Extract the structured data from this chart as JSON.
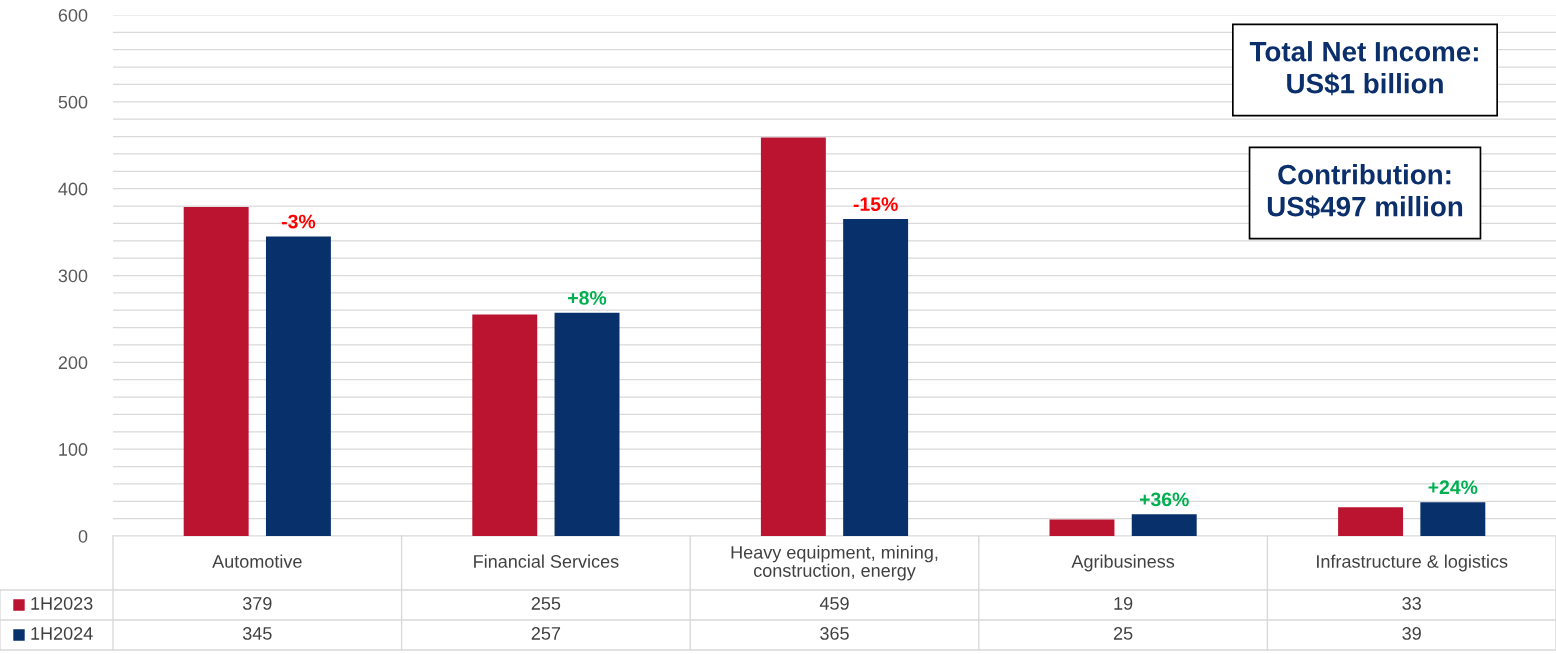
{
  "chart_data": {
    "type": "bar",
    "categories": [
      "Automotive",
      "Financial Services",
      "Heavy equipment, mining,\nconstruction, energy",
      "Agribusiness",
      "Infrastructure & logistics"
    ],
    "series": [
      {
        "name": "1H2023",
        "color": "#ba1431",
        "values": [
          379,
          255,
          459,
          19,
          33
        ]
      },
      {
        "name": "1H2024",
        "color": "#08306b",
        "values": [
          345,
          257,
          365,
          25,
          39
        ]
      }
    ],
    "ylim": [
      0,
      600
    ],
    "yticks": [
      0,
      {
        "value": 20,
        "label": null
      },
      {
        "value": 40,
        "label": null
      },
      {
        "value": 60,
        "label": null
      },
      {
        "value": 80,
        "label": null
      },
      100,
      {
        "value": 120,
        "label": null
      },
      {
        "value": 140,
        "label": null
      },
      {
        "value": 160,
        "label": null
      },
      {
        "value": 180,
        "label": null
      },
      200,
      {
        "value": 220,
        "label": null
      },
      {
        "value": 240,
        "label": null
      },
      {
        "value": 260,
        "label": null
      },
      {
        "value": 280,
        "label": null
      },
      300,
      {
        "value": 320,
        "label": null
      },
      {
        "value": 340,
        "label": null
      },
      {
        "value": 360,
        "label": null
      },
      {
        "value": 380,
        "label": null
      },
      400,
      {
        "value": 420,
        "label": null
      },
      {
        "value": 440,
        "label": null
      },
      {
        "value": 460,
        "label": null
      },
      {
        "value": 480,
        "label": null
      },
      500,
      {
        "value": 520,
        "label": null
      },
      {
        "value": 540,
        "label": null
      },
      {
        "value": 560,
        "label": null
      },
      {
        "value": 580,
        "label": null
      },
      600
    ],
    "grid": "y",
    "legend": "bottom left",
    "data_labels": true,
    "annotations": [
      "-3%",
      "+8%",
      "-15%",
      "+36%",
      "+24%",
      "Total Net Income:\nUS$1 billion",
      "Contribution:\nUS$497 million"
    ]
  }
}
